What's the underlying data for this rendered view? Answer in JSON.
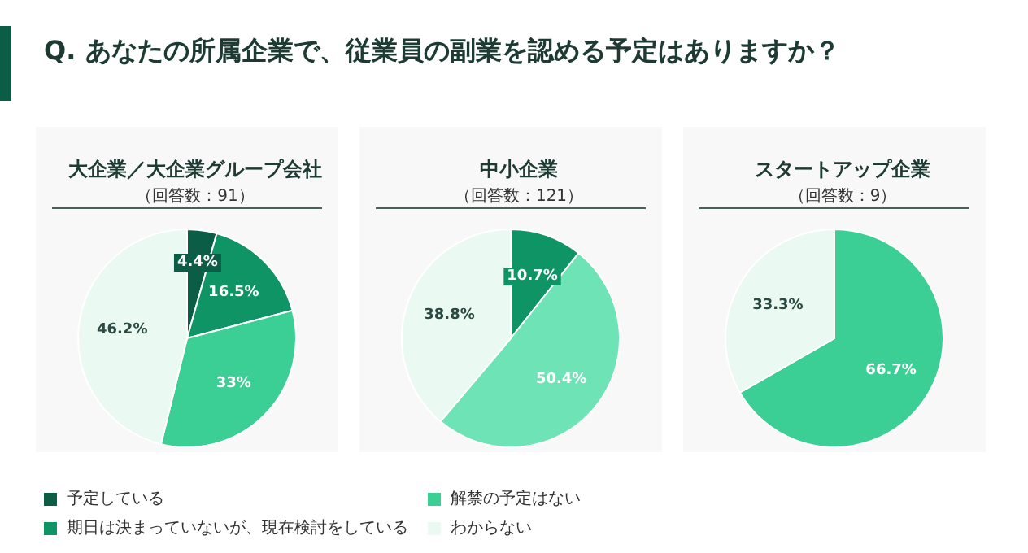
{
  "chart_data": {
    "type": "pie",
    "title": "Q. あなたの所属企業で、従業員の副業を認める予定はありますか？",
    "legend": "bottom",
    "categories": [
      "予定している",
      "期日は決まっていないが、現在検討をしている",
      "解禁の予定はない",
      "わからない"
    ],
    "colors": [
      "#0b5e45",
      "#0f9466",
      "#3ccf95",
      "#eafaf3"
    ],
    "annotations": [
      "（回答数：91）",
      "（回答数：121）",
      "（回答数：9）"
    ],
    "series": [
      {
        "name": "大企業／大企業グループ会社",
        "values": [
          4.4,
          16.5,
          33,
          46.2
        ],
        "value_labels": [
          "4.4%",
          "16.5%",
          "33%",
          "46.2%"
        ]
      },
      {
        "name": "中小企業",
        "values": [
          null,
          10.7,
          50.4,
          38.8
        ],
        "value_labels": [
          null,
          "10.7%",
          "50.4%",
          "38.8%"
        ],
        "colors": [
          null,
          "#0f9466",
          "#6ee3b6",
          "#eafaf3"
        ]
      },
      {
        "name": "スタートアップ企業",
        "values": [
          null,
          null,
          66.7,
          33.3
        ],
        "value_labels": [
          null,
          null,
          "66.7%",
          "33.3%"
        ]
      }
    ]
  }
}
